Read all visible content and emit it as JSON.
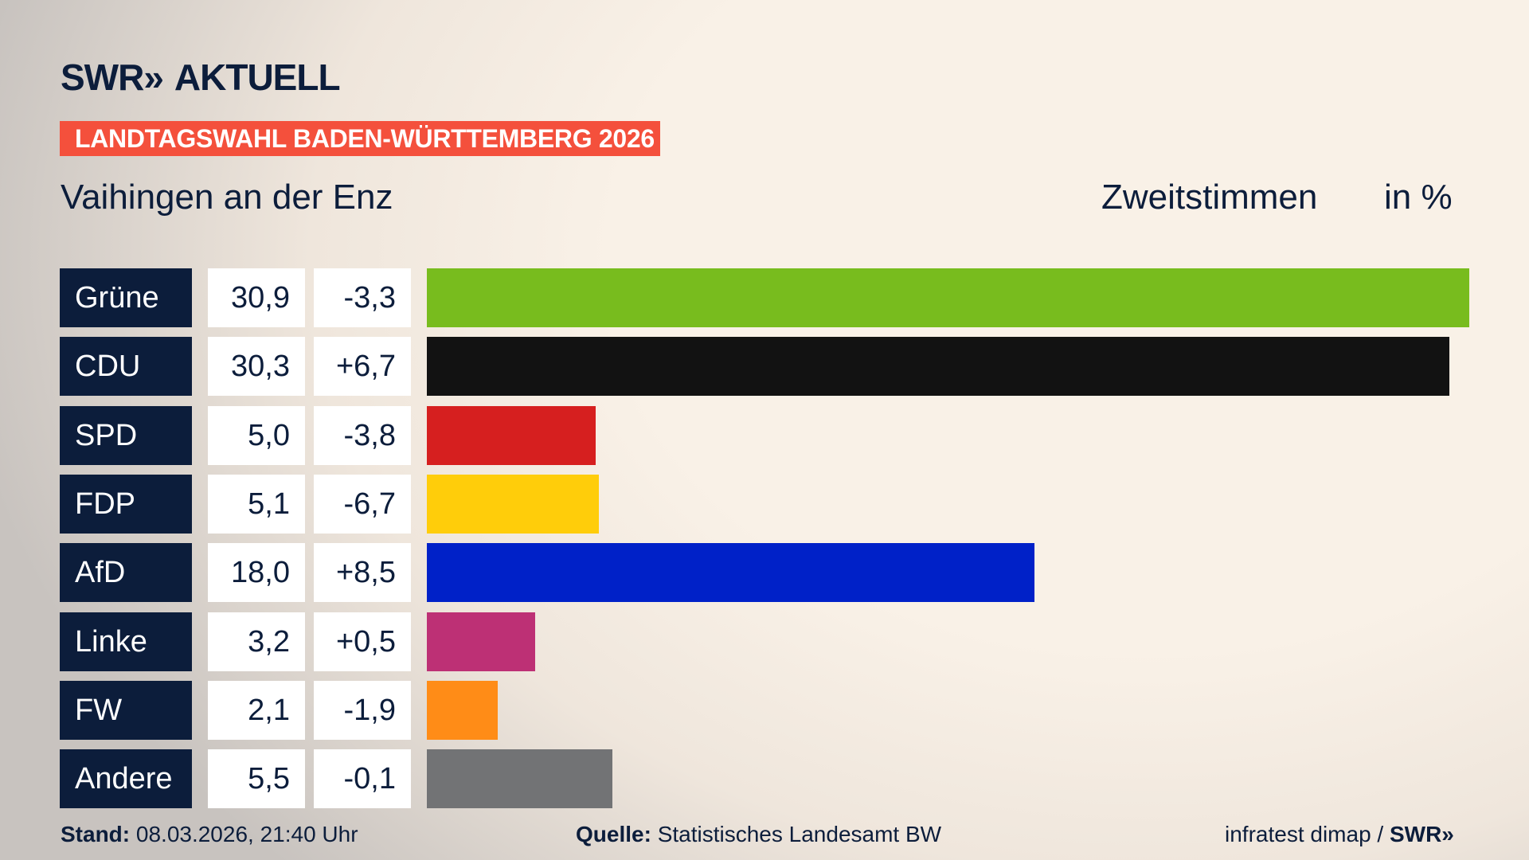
{
  "header": {
    "logo_text": "SWR» AKTUELL",
    "brand": "SWR",
    "chevrons": "»",
    "product": "AKTUELL",
    "banner": "LANDTAGSWAHL BADEN-WÜRTTEMBERG 2026",
    "district": "Vaihingen an der Enz",
    "vote_type": "Zweitstimmen",
    "unit": "in %"
  },
  "chart_data": {
    "type": "bar",
    "orientation": "horizontal",
    "xlim": [
      0,
      30.9
    ],
    "grid": false,
    "categories": [
      "Grüne",
      "CDU",
      "SPD",
      "FDP",
      "AfD",
      "Linke",
      "FW",
      "Andere"
    ],
    "values": [
      30.9,
      30.3,
      5.0,
      5.1,
      18.0,
      3.2,
      2.1,
      5.5
    ],
    "value_labels": [
      "30,9",
      "30,3",
      "5,0",
      "5,1",
      "18,0",
      "3,2",
      "2,1",
      "5,5"
    ],
    "change_labels": [
      "-3,3",
      "+6,7",
      "-3,8",
      "-6,7",
      "+8,5",
      "+0,5",
      "-1,9",
      "-0,1"
    ],
    "colors": [
      "#78bc1e",
      "#121212",
      "#d61f1f",
      "#ffcd0a",
      "#0021c8",
      "#bd3075",
      "#ff8c17",
      "#727375"
    ]
  },
  "footer": {
    "stand_label": "Stand:",
    "stand_value": "08.03.2026, 21:40 Uhr",
    "source_label": "Quelle:",
    "source_value": "Statistisches Landesamt BW",
    "credit": "infratest dimap /",
    "credit_brand": "SWR»"
  },
  "colors": {
    "navy": "#0c1d3b",
    "banner": "#f4503c"
  }
}
